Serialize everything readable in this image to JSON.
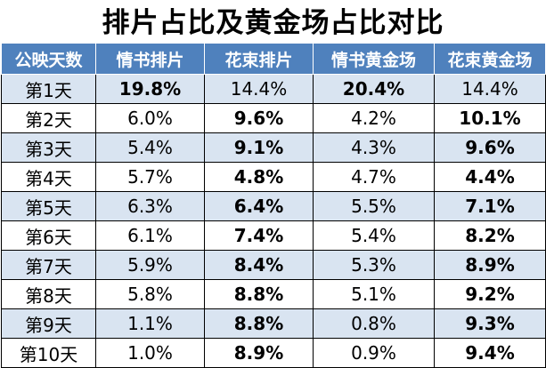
{
  "title": "排片占比及黄金场占比对比",
  "chart_data": {
    "type": "table",
    "title": "排片占比及黄金场占比对比",
    "columns": [
      "公映天数",
      "情书排片",
      "花束排片",
      "情书黄金场",
      "花束黄金场"
    ],
    "rows": [
      {
        "day": "第1天",
        "values": [
          "19.8%",
          "14.4%",
          "20.4%",
          "14.4%"
        ],
        "bold": [
          true,
          false,
          true,
          false
        ]
      },
      {
        "day": "第2天",
        "values": [
          "6.0%",
          "9.6%",
          "4.2%",
          "10.1%"
        ],
        "bold": [
          false,
          true,
          false,
          true
        ]
      },
      {
        "day": "第3天",
        "values": [
          "5.4%",
          "9.1%",
          "4.3%",
          "9.6%"
        ],
        "bold": [
          false,
          true,
          false,
          true
        ]
      },
      {
        "day": "第4天",
        "values": [
          "5.7%",
          "4.8%",
          "4.7%",
          "4.4%"
        ],
        "bold": [
          false,
          true,
          false,
          true
        ]
      },
      {
        "day": "第5天",
        "values": [
          "6.3%",
          "6.4%",
          "5.5%",
          "7.1%"
        ],
        "bold": [
          false,
          true,
          false,
          true
        ]
      },
      {
        "day": "第6天",
        "values": [
          "6.1%",
          "7.4%",
          "5.4%",
          "8.2%"
        ],
        "bold": [
          false,
          true,
          false,
          true
        ]
      },
      {
        "day": "第7天",
        "values": [
          "5.9%",
          "8.4%",
          "5.3%",
          "8.9%"
        ],
        "bold": [
          false,
          true,
          false,
          true
        ]
      },
      {
        "day": "第8天",
        "values": [
          "5.8%",
          "8.8%",
          "5.1%",
          "9.2%"
        ],
        "bold": [
          false,
          true,
          false,
          true
        ]
      },
      {
        "day": "第9天",
        "values": [
          "1.1%",
          "8.8%",
          "0.8%",
          "9.3%"
        ],
        "bold": [
          false,
          true,
          false,
          true
        ]
      },
      {
        "day": "第10天",
        "values": [
          "1.0%",
          "8.9%",
          "0.9%",
          "9.4%"
        ],
        "bold": [
          false,
          true,
          false,
          true
        ]
      }
    ]
  },
  "colors": {
    "header_bg": "#4f81bd",
    "header_text": "#ffffff",
    "band_odd": "#d9e4f1",
    "band_even": "#ffffff"
  }
}
